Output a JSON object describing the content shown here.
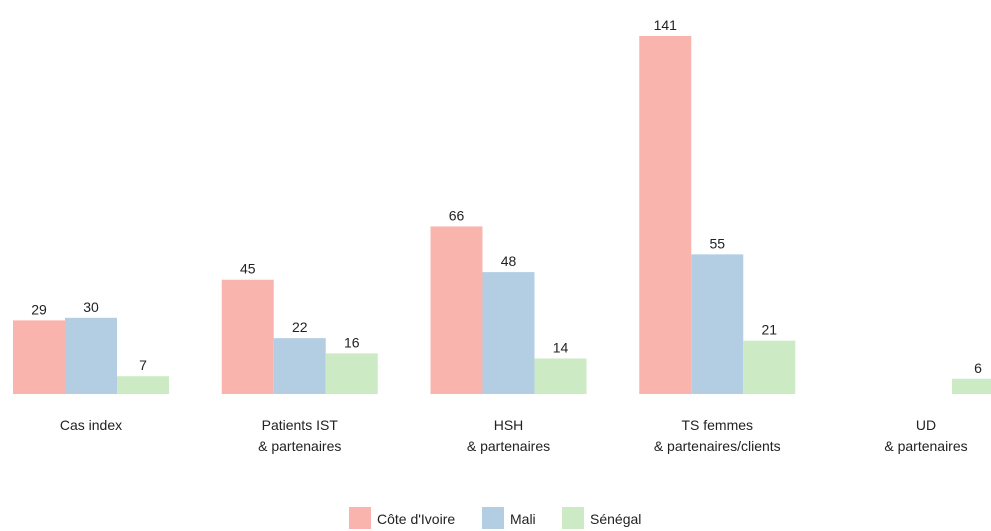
{
  "chart_data": {
    "type": "bar",
    "categories": [
      "Cas index",
      "Patients IST\n& partenaires",
      "HSH\n& partenaires",
      "TS femmes\n& partenaires/clients",
      "UD\n& partenaires"
    ],
    "series": [
      {
        "name": "Côte d'Ivoire",
        "color": "#f9b4ae",
        "values": [
          29,
          45,
          66,
          141,
          null
        ]
      },
      {
        "name": "Mali",
        "color": "#b3cde3",
        "values": [
          30,
          22,
          48,
          55,
          null
        ]
      },
      {
        "name": "Sénégal",
        "color": "#ccebc5",
        "values": [
          7,
          16,
          14,
          21,
          6
        ]
      }
    ],
    "legend": "bottom"
  }
}
